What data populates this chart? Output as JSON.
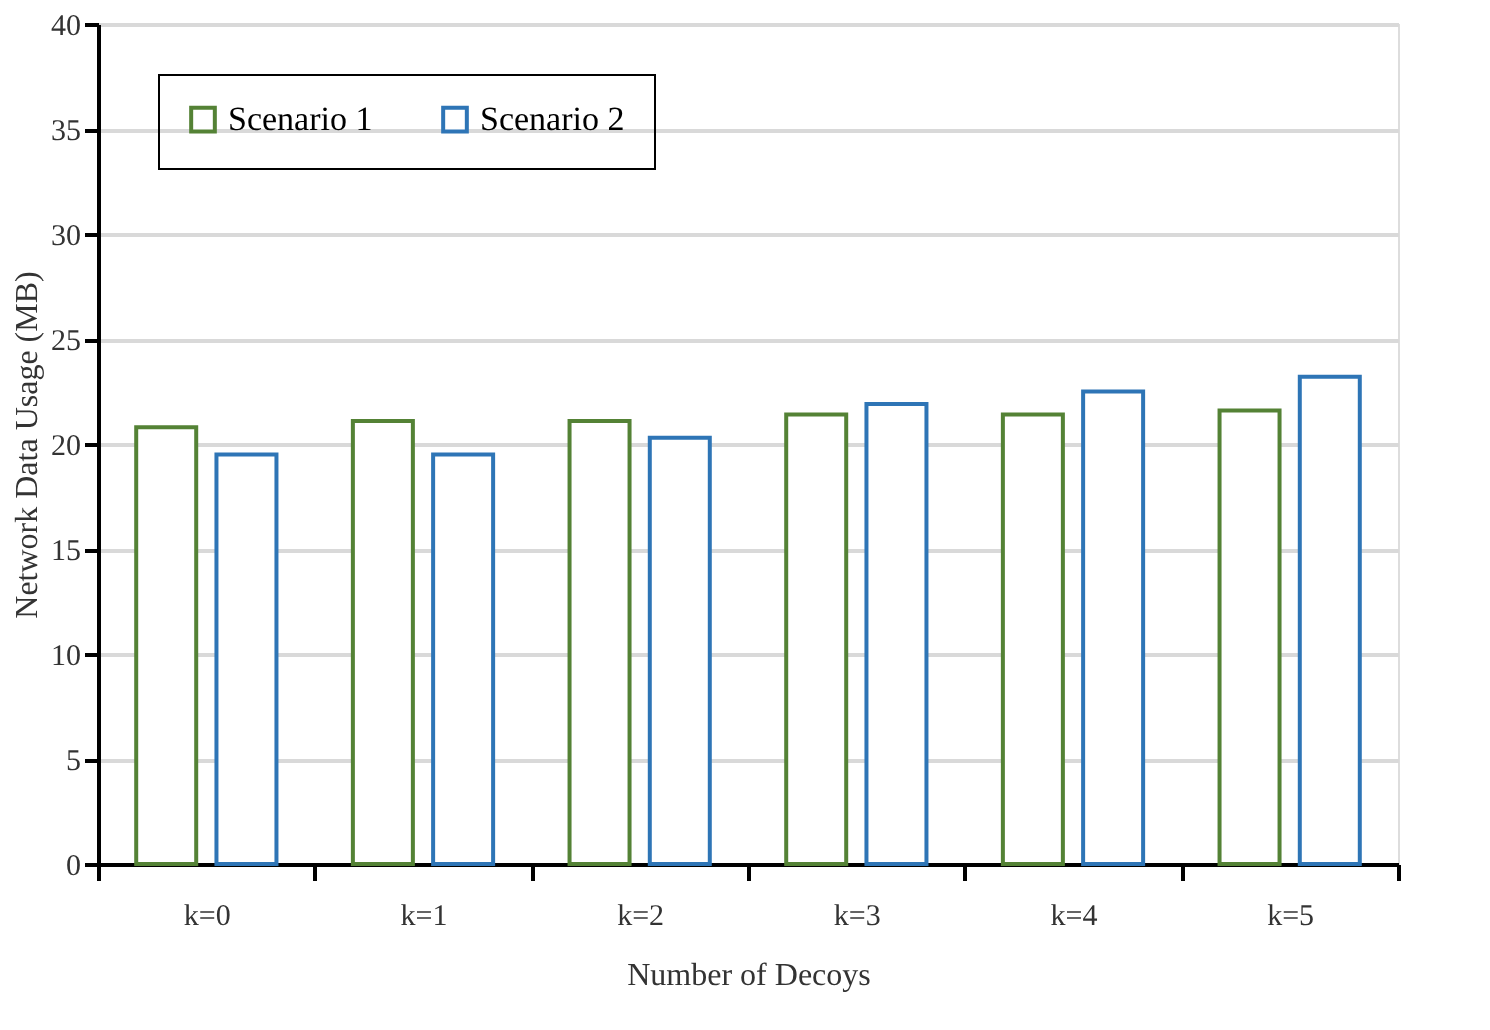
{
  "chart_data": {
    "type": "bar",
    "xlabel": "Number of Decoys",
    "ylabel": "Network Data Usage (MB)",
    "categories": [
      "k=0",
      "k=1",
      "k=2",
      "k=3",
      "k=4",
      "k=5"
    ],
    "series": [
      {
        "name": "Scenario 1",
        "color": "#548235",
        "values": [
          20.8,
          21.1,
          21.1,
          21.4,
          21.4,
          21.6
        ]
      },
      {
        "name": "Scenario 2",
        "color": "#2e75b6",
        "values": [
          19.5,
          19.5,
          20.3,
          21.9,
          22.5,
          23.2
        ]
      }
    ],
    "ylim": [
      0,
      40
    ],
    "yticks": [
      0,
      5,
      10,
      15,
      20,
      25,
      30,
      35,
      40
    ],
    "grid": "y",
    "legend": "top left"
  }
}
